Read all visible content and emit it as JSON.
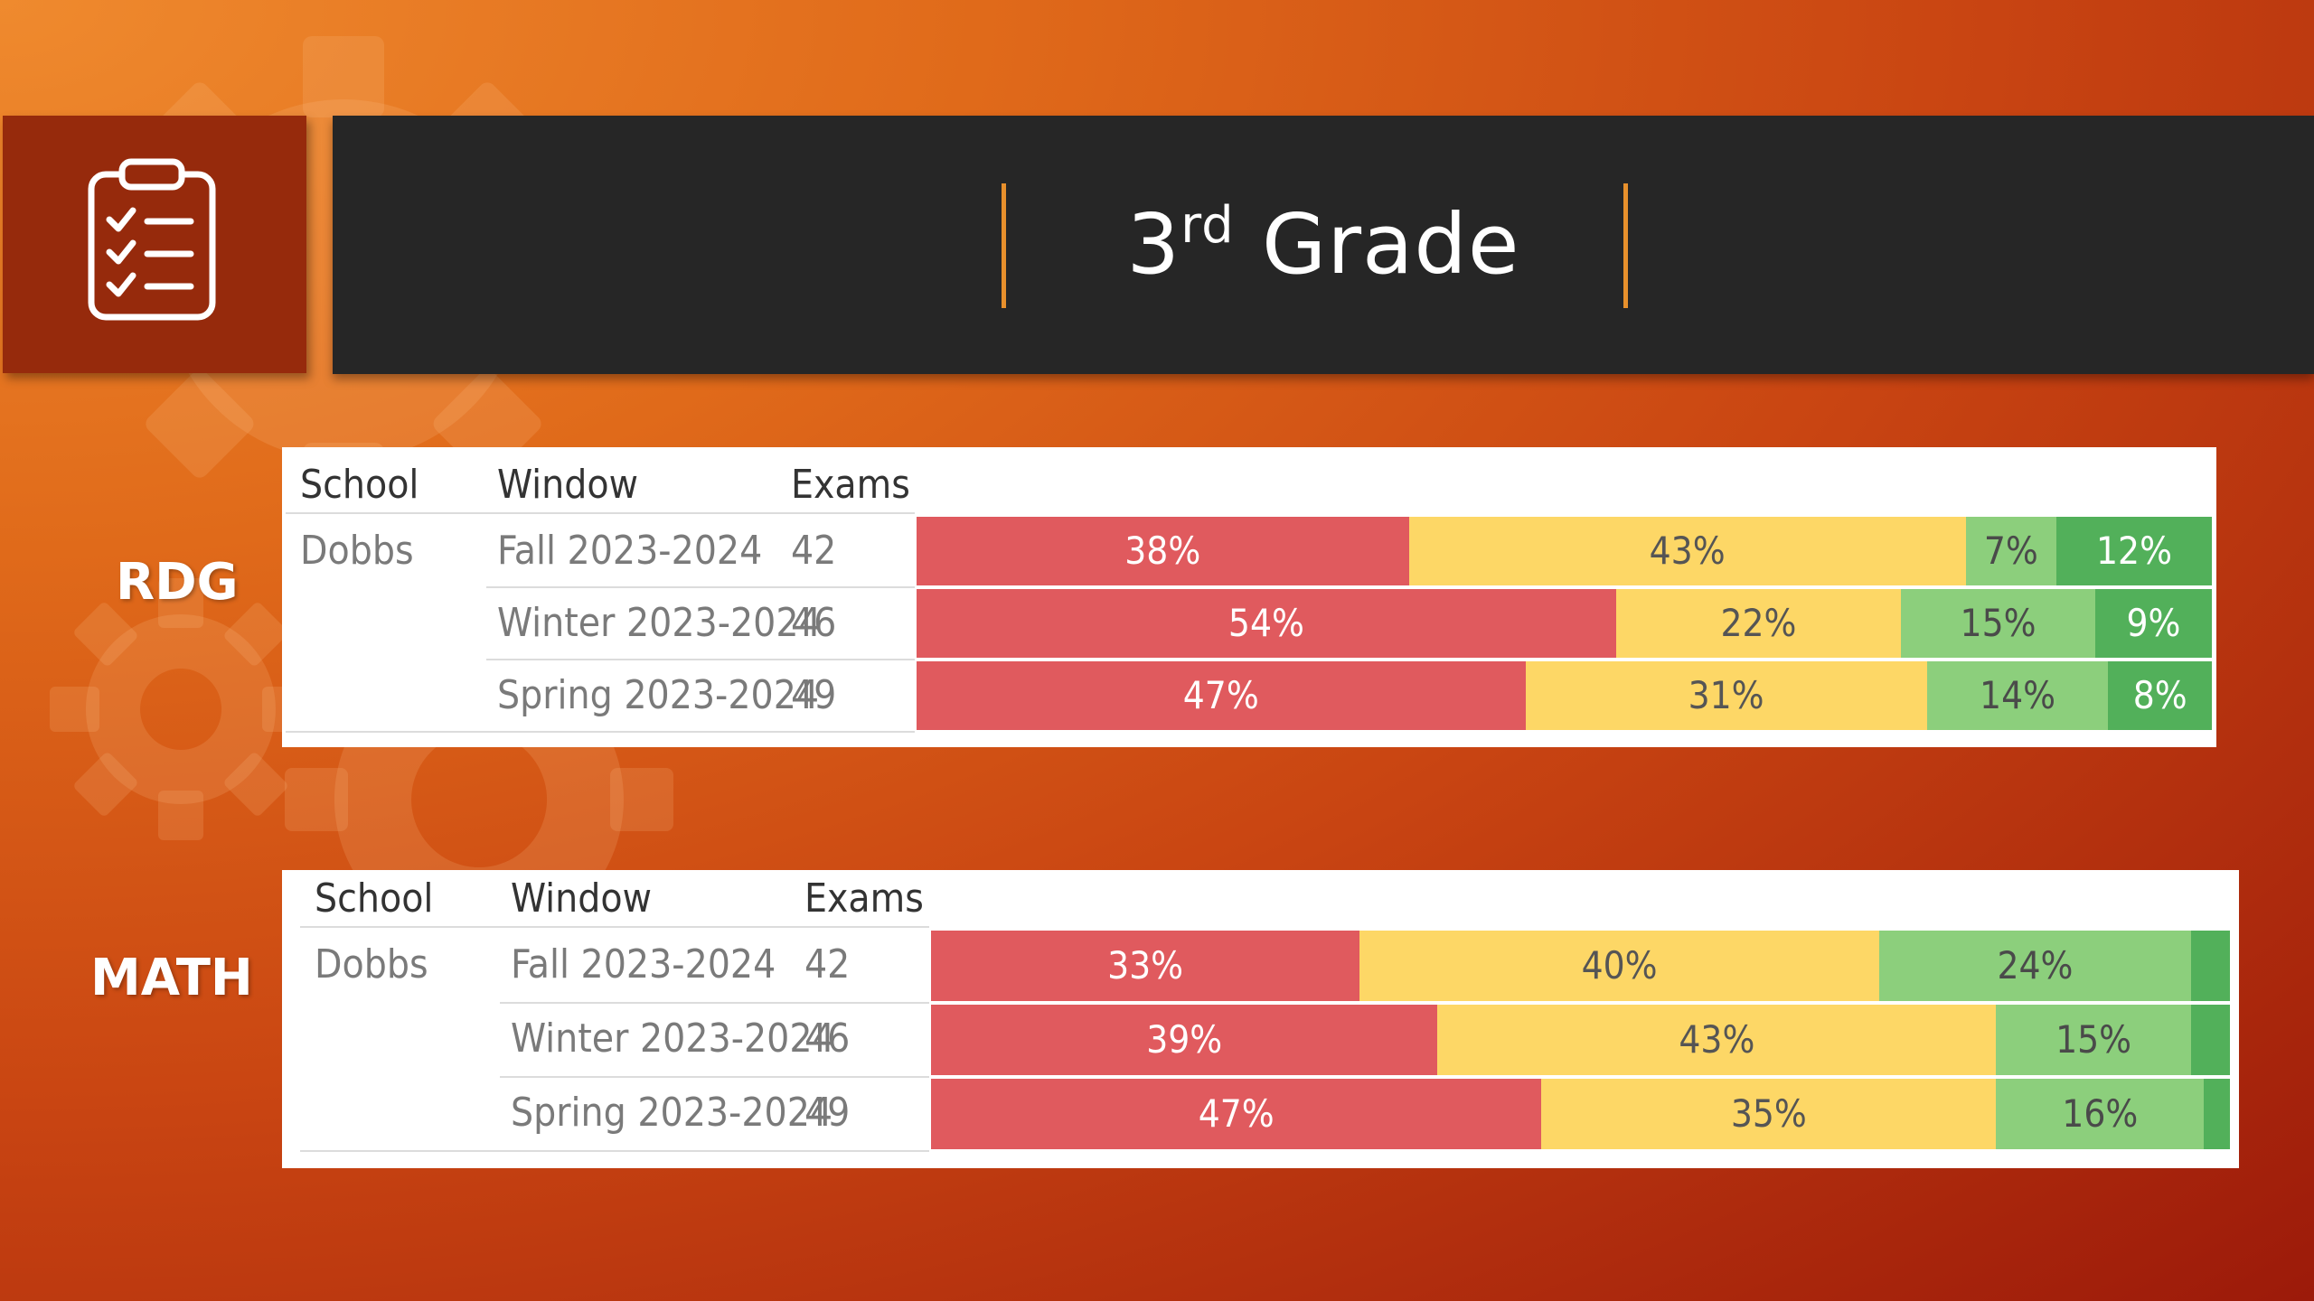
{
  "header": {
    "title_number": "3",
    "title_suffix": "rd",
    "title_word": "Grade"
  },
  "colors": {
    "red": "#e05a5e",
    "yellow": "#fdd766",
    "light_green": "#8ccf7c",
    "dark_green": "#52b05a",
    "banner_bg": "#262626",
    "icon_box": "#962a0c",
    "accent_rule": "#e8902c"
  },
  "icons": {
    "badge": "clipboard-checklist-icon",
    "background": "gears-icon"
  },
  "table_headers": {
    "school": "School",
    "window": "Window",
    "exams": "Exams"
  },
  "chart_data": [
    {
      "type": "bar",
      "orientation": "horizontal",
      "stacked": "100%",
      "subject": "RDG",
      "school": "Dobbs",
      "categories": [
        "Fall 2023-2024",
        "Winter 2023-2024",
        "Spring 2023-2024"
      ],
      "exams": [
        "42",
        "46",
        "49"
      ],
      "series": [
        {
          "color": "#e05a5e",
          "values": [
            38,
            54,
            47
          ],
          "labels": [
            "38%",
            "54%",
            "47%"
          ]
        },
        {
          "color": "#fdd766",
          "values": [
            43,
            22,
            31
          ],
          "labels": [
            "43%",
            "22%",
            "31%"
          ]
        },
        {
          "color": "#8ccf7c",
          "values": [
            7,
            15,
            14
          ],
          "labels": [
            "7%",
            "15%",
            "14%"
          ]
        },
        {
          "color": "#52b05a",
          "values": [
            12,
            9,
            8
          ],
          "labels": [
            "12%",
            "9%",
            "8%"
          ]
        }
      ]
    },
    {
      "type": "bar",
      "orientation": "horizontal",
      "stacked": "100%",
      "subject": "MATH",
      "school": "Dobbs",
      "categories": [
        "Fall 2023-2024",
        "Winter 2023-2024",
        "Spring 2023-2024"
      ],
      "exams": [
        "42",
        "46",
        "49"
      ],
      "series": [
        {
          "color": "#e05a5e",
          "values": [
            33,
            39,
            47
          ],
          "labels": [
            "33%",
            "39%",
            "47%"
          ]
        },
        {
          "color": "#fdd766",
          "values": [
            40,
            43,
            35
          ],
          "labels": [
            "40%",
            "43%",
            "35%"
          ]
        },
        {
          "color": "#8ccf7c",
          "values": [
            24,
            15,
            16
          ],
          "labels": [
            "24%",
            "15%",
            "16%"
          ]
        },
        {
          "color": "#52b05a",
          "values": [
            3,
            3,
            2
          ],
          "labels": [
            "",
            "",
            ""
          ]
        }
      ]
    }
  ]
}
